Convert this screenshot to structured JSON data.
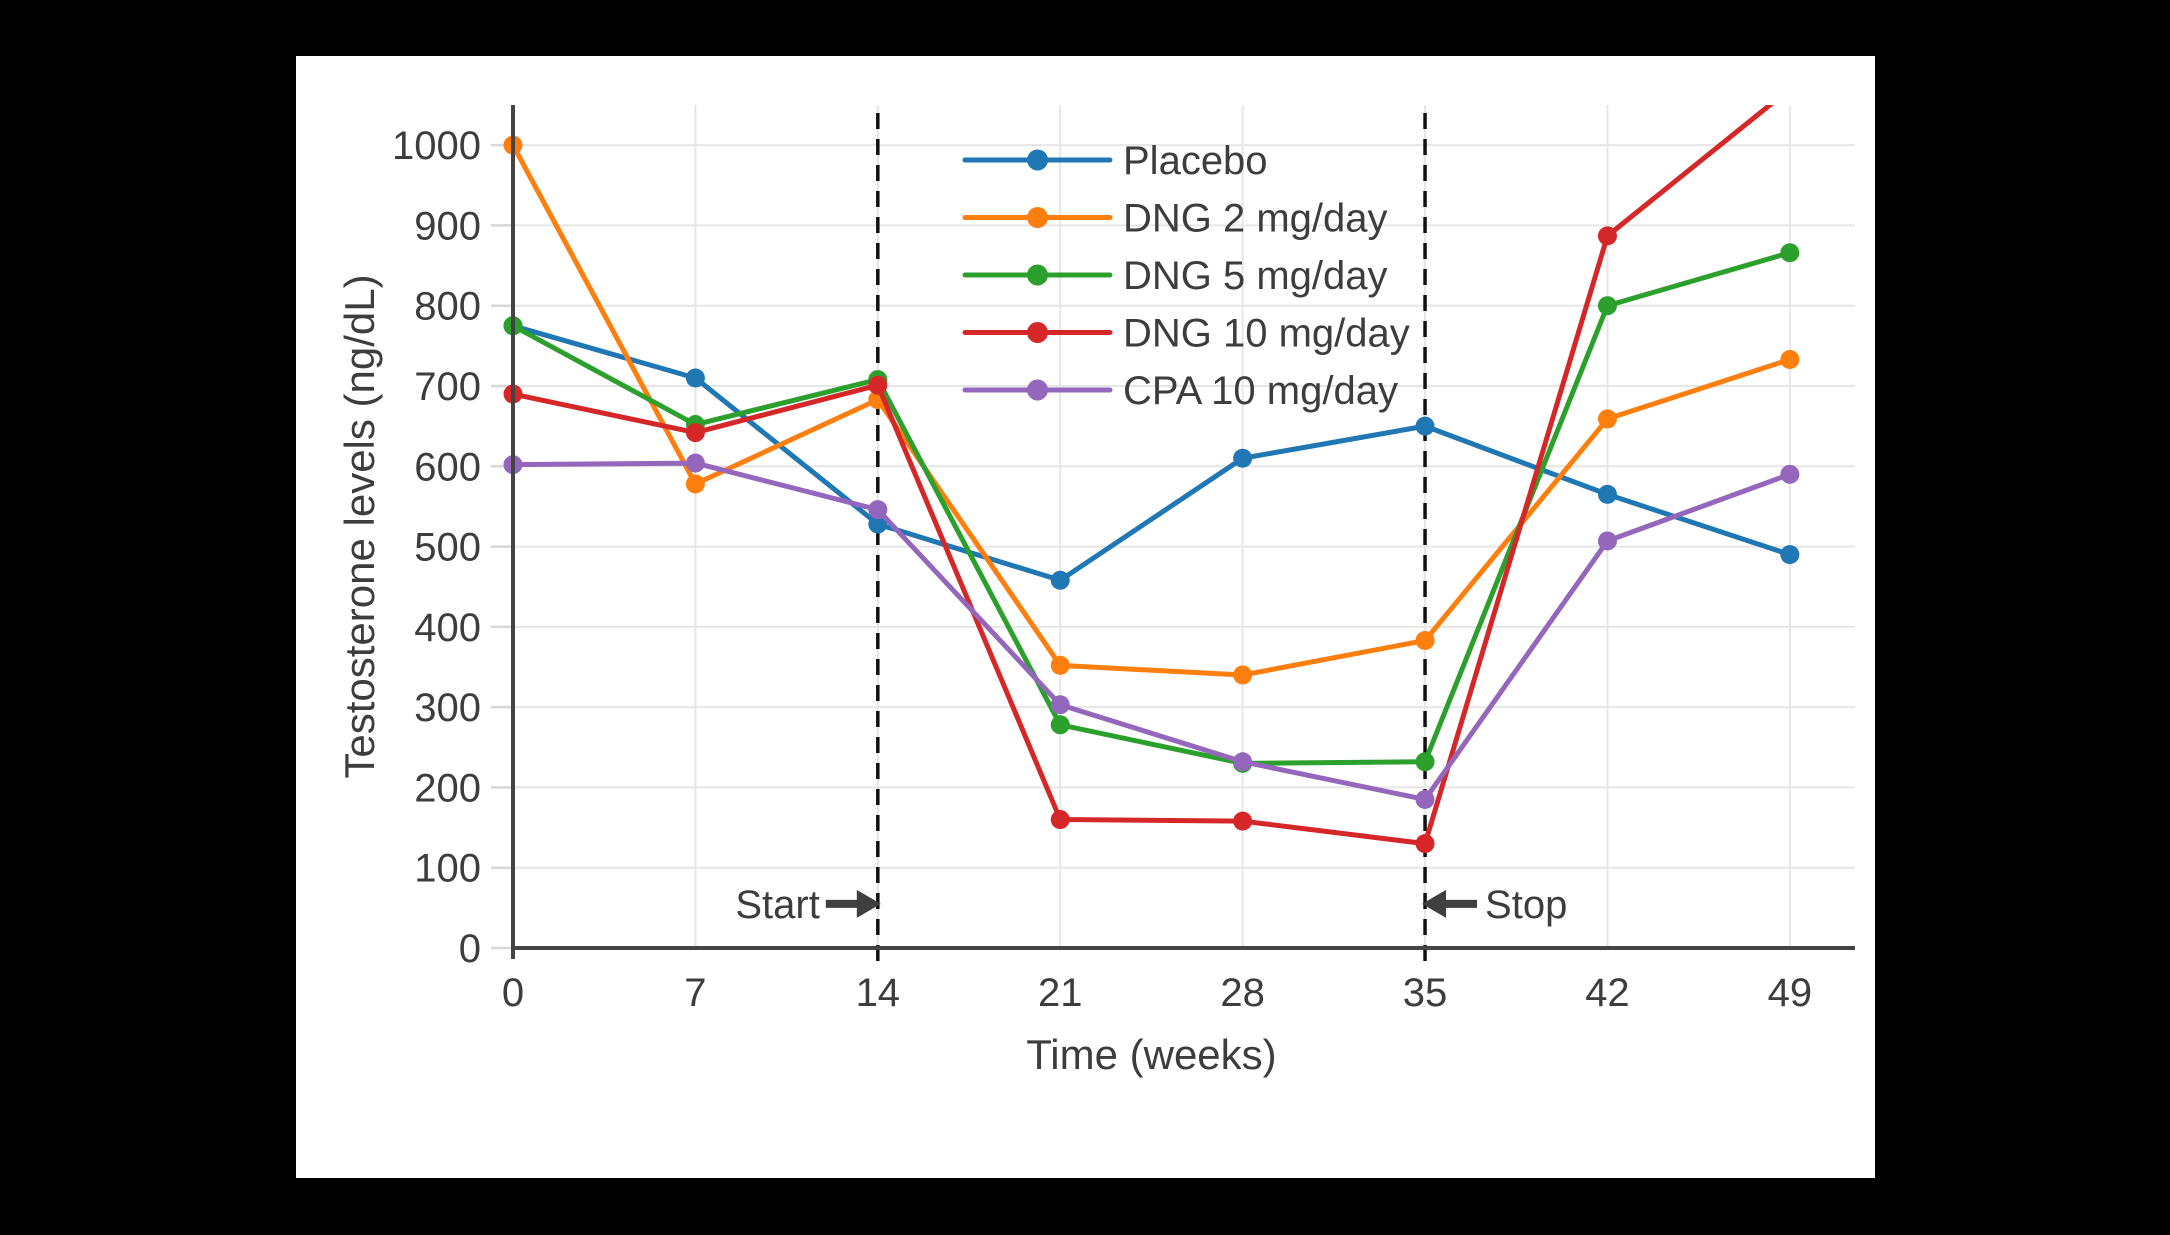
{
  "page": {
    "background_color": "#000000",
    "card_background_color": "#ffffff"
  },
  "style": {
    "text_color": "#3d3d3d",
    "axis_color": "#444444",
    "grid_color": "#e6e6e6",
    "tick_color": "#d8d8d8",
    "dashed_line_color": "#111111",
    "arrow_color": "#3f3f3f"
  },
  "chart_data": {
    "type": "line",
    "title": "",
    "xlabel": "Time (weeks)",
    "ylabel": "Testosterone levels (ng/dL)",
    "x": [
      0,
      7,
      14,
      21,
      28,
      35,
      42,
      49
    ],
    "xticks": [
      0,
      7,
      14,
      21,
      28,
      35,
      42,
      49
    ],
    "yticks": [
      0,
      100,
      200,
      300,
      400,
      500,
      600,
      700,
      800,
      900,
      1000
    ],
    "xlim": [
      0,
      51.5
    ],
    "ylim": [
      0,
      1050
    ],
    "grid": true,
    "legend_position": "upper-left-inside",
    "series": [
      {
        "name": "Placebo",
        "color": "#1f77b4",
        "marker": "circle",
        "values": [
          775,
          710,
          528,
          458,
          610,
          650,
          565,
          490
        ]
      },
      {
        "name": "DNG 2 mg/day",
        "color": "#ff7f0e",
        "marker": "circle",
        "values": [
          1000,
          578,
          683,
          352,
          340,
          383,
          659,
          733
        ]
      },
      {
        "name": "DNG 5 mg/day",
        "color": "#2ca02c",
        "marker": "circle",
        "values": [
          775,
          652,
          708,
          278,
          230,
          232,
          800,
          866
        ]
      },
      {
        "name": "DNG 10 mg/day",
        "color": "#d62728",
        "marker": "circle",
        "values": [
          690,
          642,
          701,
          160,
          158,
          130,
          887,
          1070
        ]
      },
      {
        "name": "CPA 10 mg/day",
        "color": "#9467bd",
        "marker": "circle",
        "values": [
          602,
          604,
          546,
          303,
          232,
          185,
          507,
          590
        ]
      }
    ],
    "vlines": [
      {
        "x": 14,
        "label": "Start",
        "arrow": "right"
      },
      {
        "x": 35,
        "label": "Stop",
        "arrow": "left"
      }
    ],
    "annotation_y": 55
  }
}
